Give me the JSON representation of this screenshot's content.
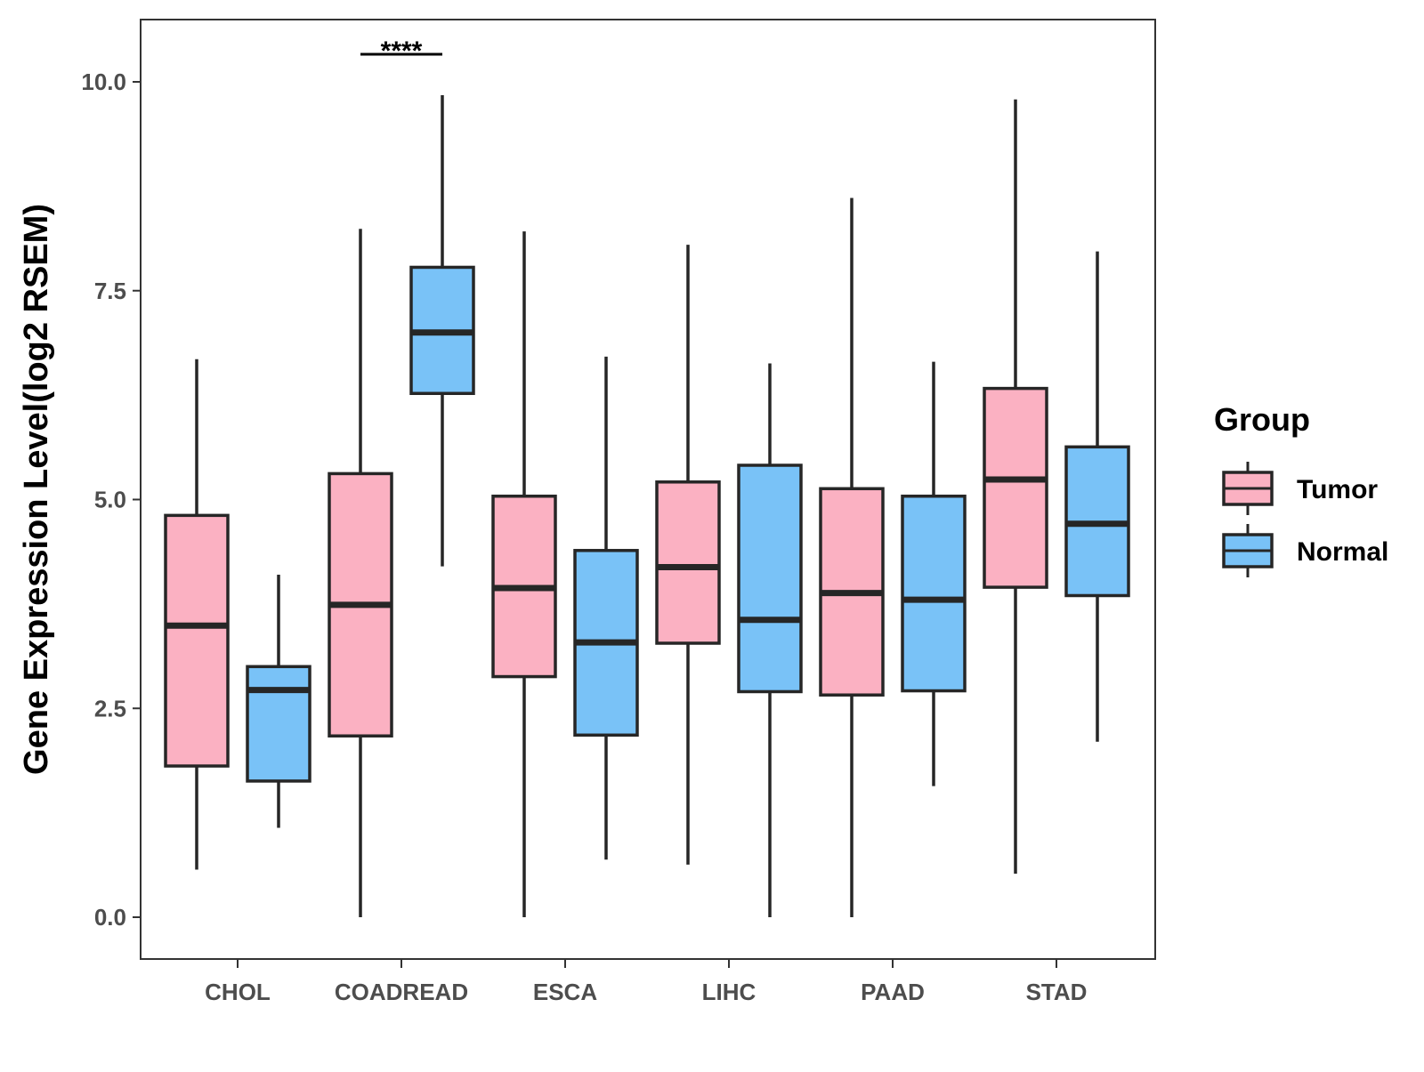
{
  "chart_data": {
    "type": "boxplot",
    "title": "",
    "xlabel": "",
    "ylabel": "Gene Expression Level(log2 RSEM)",
    "ylim": [
      -0.5,
      10.75
    ],
    "yticks": [
      {
        "value": 0,
        "label": "0.0"
      },
      {
        "value": 2.5,
        "label": "2.5"
      },
      {
        "value": 5,
        "label": "5.0"
      },
      {
        "value": 7.5,
        "label": "7.5"
      },
      {
        "value": 10,
        "label": "10.0"
      }
    ],
    "categories": [
      "CHOL",
      "COADREAD",
      "ESCA",
      "LIHC",
      "PAAD",
      "STAD"
    ],
    "grid": false,
    "legend": {
      "title": "Group",
      "position": "right",
      "entries": [
        {
          "name": "Tumor",
          "color": "#FBB1C2"
        },
        {
          "name": "Normal",
          "color": "#79C2F7"
        }
      ]
    },
    "series": [
      {
        "name": "Tumor",
        "color": "#FBB1C2",
        "boxes": [
          {
            "min": 0.57,
            "q1": 1.81,
            "median": 3.49,
            "q3": 4.81,
            "max": 6.68
          },
          {
            "min": 0.0,
            "q1": 2.17,
            "median": 3.74,
            "q3": 5.31,
            "max": 8.24
          },
          {
            "min": 0.0,
            "q1": 2.88,
            "median": 3.94,
            "q3": 5.04,
            "max": 8.21
          },
          {
            "min": 0.63,
            "q1": 3.28,
            "median": 4.19,
            "q3": 5.21,
            "max": 8.05
          },
          {
            "min": 0.0,
            "q1": 2.66,
            "median": 3.88,
            "q3": 5.13,
            "max": 8.61
          },
          {
            "min": 0.52,
            "q1": 3.95,
            "median": 5.24,
            "q3": 6.33,
            "max": 9.79
          }
        ]
      },
      {
        "name": "Normal",
        "color": "#79C2F7",
        "boxes": [
          {
            "min": 1.07,
            "q1": 1.63,
            "median": 2.72,
            "q3": 3.0,
            "max": 4.1
          },
          {
            "min": 4.2,
            "q1": 6.27,
            "median": 7.0,
            "q3": 7.78,
            "max": 9.84
          },
          {
            "min": 0.69,
            "q1": 2.18,
            "median": 3.29,
            "q3": 4.39,
            "max": 6.71
          },
          {
            "min": 0.0,
            "q1": 2.7,
            "median": 3.56,
            "q3": 5.41,
            "max": 6.63
          },
          {
            "min": 1.57,
            "q1": 2.71,
            "median": 3.8,
            "q3": 5.04,
            "max": 6.65
          },
          {
            "min": 2.1,
            "q1": 3.85,
            "median": 4.71,
            "q3": 5.63,
            "max": 7.97
          }
        ]
      }
    ],
    "annotations": [
      {
        "category": "COADREAD",
        "text": "****",
        "y": 10.33
      }
    ]
  }
}
